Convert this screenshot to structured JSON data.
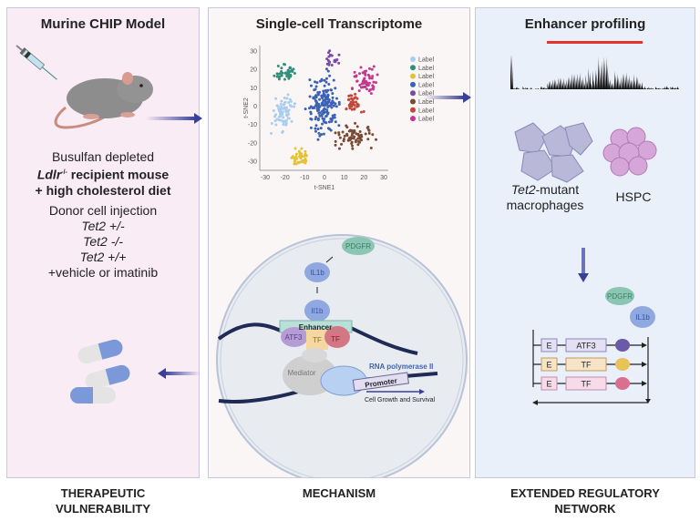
{
  "panels": {
    "model": {
      "title": "Murine CHIP Model",
      "line1": "Busulfan depleted",
      "line2_gene": "Ldlr",
      "line2_sup": "-/-",
      "line2_rest": " recipient mouse",
      "line3": "+ high cholesterol diet",
      "injection_title": "Donor cell injection",
      "genotypes": [
        "Tet2 +/-",
        "Tet2 -/-",
        "Tet2 +/+"
      ],
      "treatment": "+vehicle or imatinib",
      "footer": [
        "THERAPEUTIC",
        "VULNERABILITY"
      ]
    },
    "transcriptome": {
      "title": "Single-cell Transcriptome",
      "footer": "MECHANISM"
    },
    "enhancer": {
      "title": "Enhancer profiling",
      "macrophage_gene": "Tet2",
      "macrophage_label": "-mutant",
      "macrophage_label2": "macrophages",
      "hspc_label": "HSPC",
      "pdgfr": "PDGFR",
      "il1b": "IL1b",
      "gene_rows": [
        {
          "e": "E",
          "tf": "ATF3",
          "box": "#e3e0f3",
          "border": "#8d86b8",
          "protein": "#6a5aa8"
        },
        {
          "e": "E",
          "tf": "TF",
          "box": "#f6e4c8",
          "border": "#c79a5c",
          "protein": "#e9c35a"
        },
        {
          "e": "E",
          "tf": "TF",
          "box": "#f7dbe9",
          "border": "#c58aa8",
          "protein": "#d9708e"
        }
      ],
      "footer": [
        "EXTENDED REGULATORY",
        "NETWORK"
      ]
    }
  },
  "mechanism": {
    "pdgfr": "PDGFR",
    "il1b_top": "IL1b",
    "il1b_nuc": "Il1b",
    "enhancer": "Enhancer",
    "atf3": "ATF3",
    "tf1": "TF",
    "tf2": "TF",
    "mediator": "Mediator",
    "polymerase": "RNA polymerase II",
    "promoter": "Promoter",
    "outcome": "Cell Growth and Survival"
  },
  "chart_data": {
    "type": "scatter",
    "xlabel": "t-SNE1",
    "ylabel": "t-SNE2",
    "xlim": [
      -30,
      30
    ],
    "ylim": [
      -35,
      33
    ],
    "xticks": [
      -30,
      -20,
      -10,
      0,
      10,
      20,
      30
    ],
    "yticks": [
      30,
      20,
      10,
      0,
      -10,
      -20,
      -30
    ],
    "series": [
      {
        "name": "Label",
        "color": "#a9cdf0",
        "center": [
          -21,
          -4
        ],
        "spread": [
          4,
          7
        ],
        "n": 70
      },
      {
        "name": "Label",
        "color": "#2e9079",
        "center": [
          -20,
          18
        ],
        "spread": [
          4,
          4
        ],
        "n": 40
      },
      {
        "name": "Label",
        "color": "#e5c233",
        "center": [
          -12,
          -28
        ],
        "spread": [
          3,
          3.5
        ],
        "n": 40
      },
      {
        "name": "Label",
        "color": "#3c62b4",
        "center": [
          -1,
          0
        ],
        "spread": [
          6,
          13
        ],
        "n": 170
      },
      {
        "name": "Label",
        "color": "#7a4aa8",
        "center": [
          4,
          26
        ],
        "spread": [
          3,
          3
        ],
        "n": 20
      },
      {
        "name": "Label",
        "color": "#7a4a33",
        "center": [
          15,
          -17
        ],
        "spread": [
          8,
          5
        ],
        "n": 70
      },
      {
        "name": "Label",
        "color": "#c2473a",
        "center": [
          15,
          1
        ],
        "spread": [
          3,
          5
        ],
        "n": 35
      },
      {
        "name": "Label",
        "color": "#c4378f",
        "center": [
          21,
          14
        ],
        "spread": [
          5,
          6
        ],
        "n": 60
      }
    ]
  }
}
